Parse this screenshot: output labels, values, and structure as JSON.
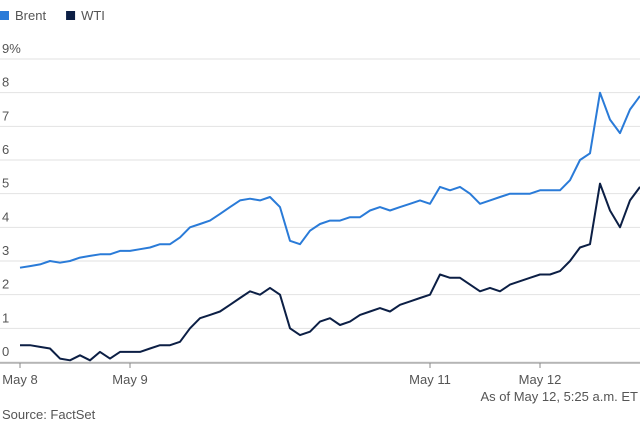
{
  "chart_data": {
    "type": "line",
    "categories": [
      "May 8",
      null,
      null,
      null,
      null,
      null,
      null,
      null,
      null,
      null,
      null,
      "May 9",
      null,
      null,
      null,
      null,
      null,
      null,
      null,
      null,
      null,
      null,
      null,
      null,
      null,
      null,
      null,
      null,
      null,
      null,
      null,
      null,
      null,
      null,
      null,
      null,
      null,
      null,
      null,
      null,
      null,
      "May 11",
      null,
      null,
      null,
      null,
      null,
      null,
      null,
      null,
      null,
      null,
      "May 12",
      null,
      null,
      null,
      null,
      null,
      null,
      null,
      null,
      null,
      null
    ],
    "series": [
      {
        "name": "Brent",
        "color": "#2a7bd8",
        "values": [
          2.8,
          2.85,
          2.9,
          3.0,
          2.95,
          3.0,
          3.1,
          3.15,
          3.2,
          3.2,
          3.3,
          3.3,
          3.35,
          3.4,
          3.5,
          3.5,
          3.7,
          4.0,
          4.1,
          4.2,
          4.4,
          4.6,
          4.8,
          4.85,
          4.8,
          4.9,
          4.6,
          3.6,
          3.5,
          3.9,
          4.1,
          4.2,
          4.2,
          4.3,
          4.3,
          4.5,
          4.6,
          4.5,
          4.6,
          4.7,
          4.8,
          4.7,
          5.2,
          5.1,
          5.2,
          5.0,
          4.7,
          4.8,
          4.9,
          5.0,
          5.0,
          5.0,
          5.1,
          5.1,
          5.1,
          5.4,
          6.0,
          6.2,
          8.0,
          7.2,
          6.8,
          7.5,
          7.9
        ]
      },
      {
        "name": "WTI",
        "color": "#0c1f45",
        "values": [
          0.5,
          0.5,
          0.45,
          0.4,
          0.1,
          0.05,
          0.2,
          0.05,
          0.3,
          0.1,
          0.3,
          0.3,
          0.3,
          0.4,
          0.5,
          0.5,
          0.6,
          1.0,
          1.3,
          1.4,
          1.5,
          1.7,
          1.9,
          2.1,
          2.0,
          2.2,
          2.0,
          1.0,
          0.8,
          0.9,
          1.2,
          1.3,
          1.1,
          1.2,
          1.4,
          1.5,
          1.6,
          1.5,
          1.7,
          1.8,
          1.9,
          2.0,
          2.6,
          2.5,
          2.5,
          2.3,
          2.1,
          2.2,
          2.1,
          2.3,
          2.4,
          2.5,
          2.6,
          2.6,
          2.7,
          3.0,
          3.4,
          3.5,
          5.3,
          4.5,
          4.0,
          4.8,
          5.2
        ]
      }
    ],
    "ylim": [
      0,
      9
    ],
    "yticks": [
      0,
      1,
      2,
      3,
      4,
      5,
      6,
      7,
      8,
      {
        "value": 9,
        "label": "9%"
      }
    ],
    "grid": true,
    "note": "As of May 12, 5:25 a.m. ET",
    "source": "Source: FactSet"
  }
}
